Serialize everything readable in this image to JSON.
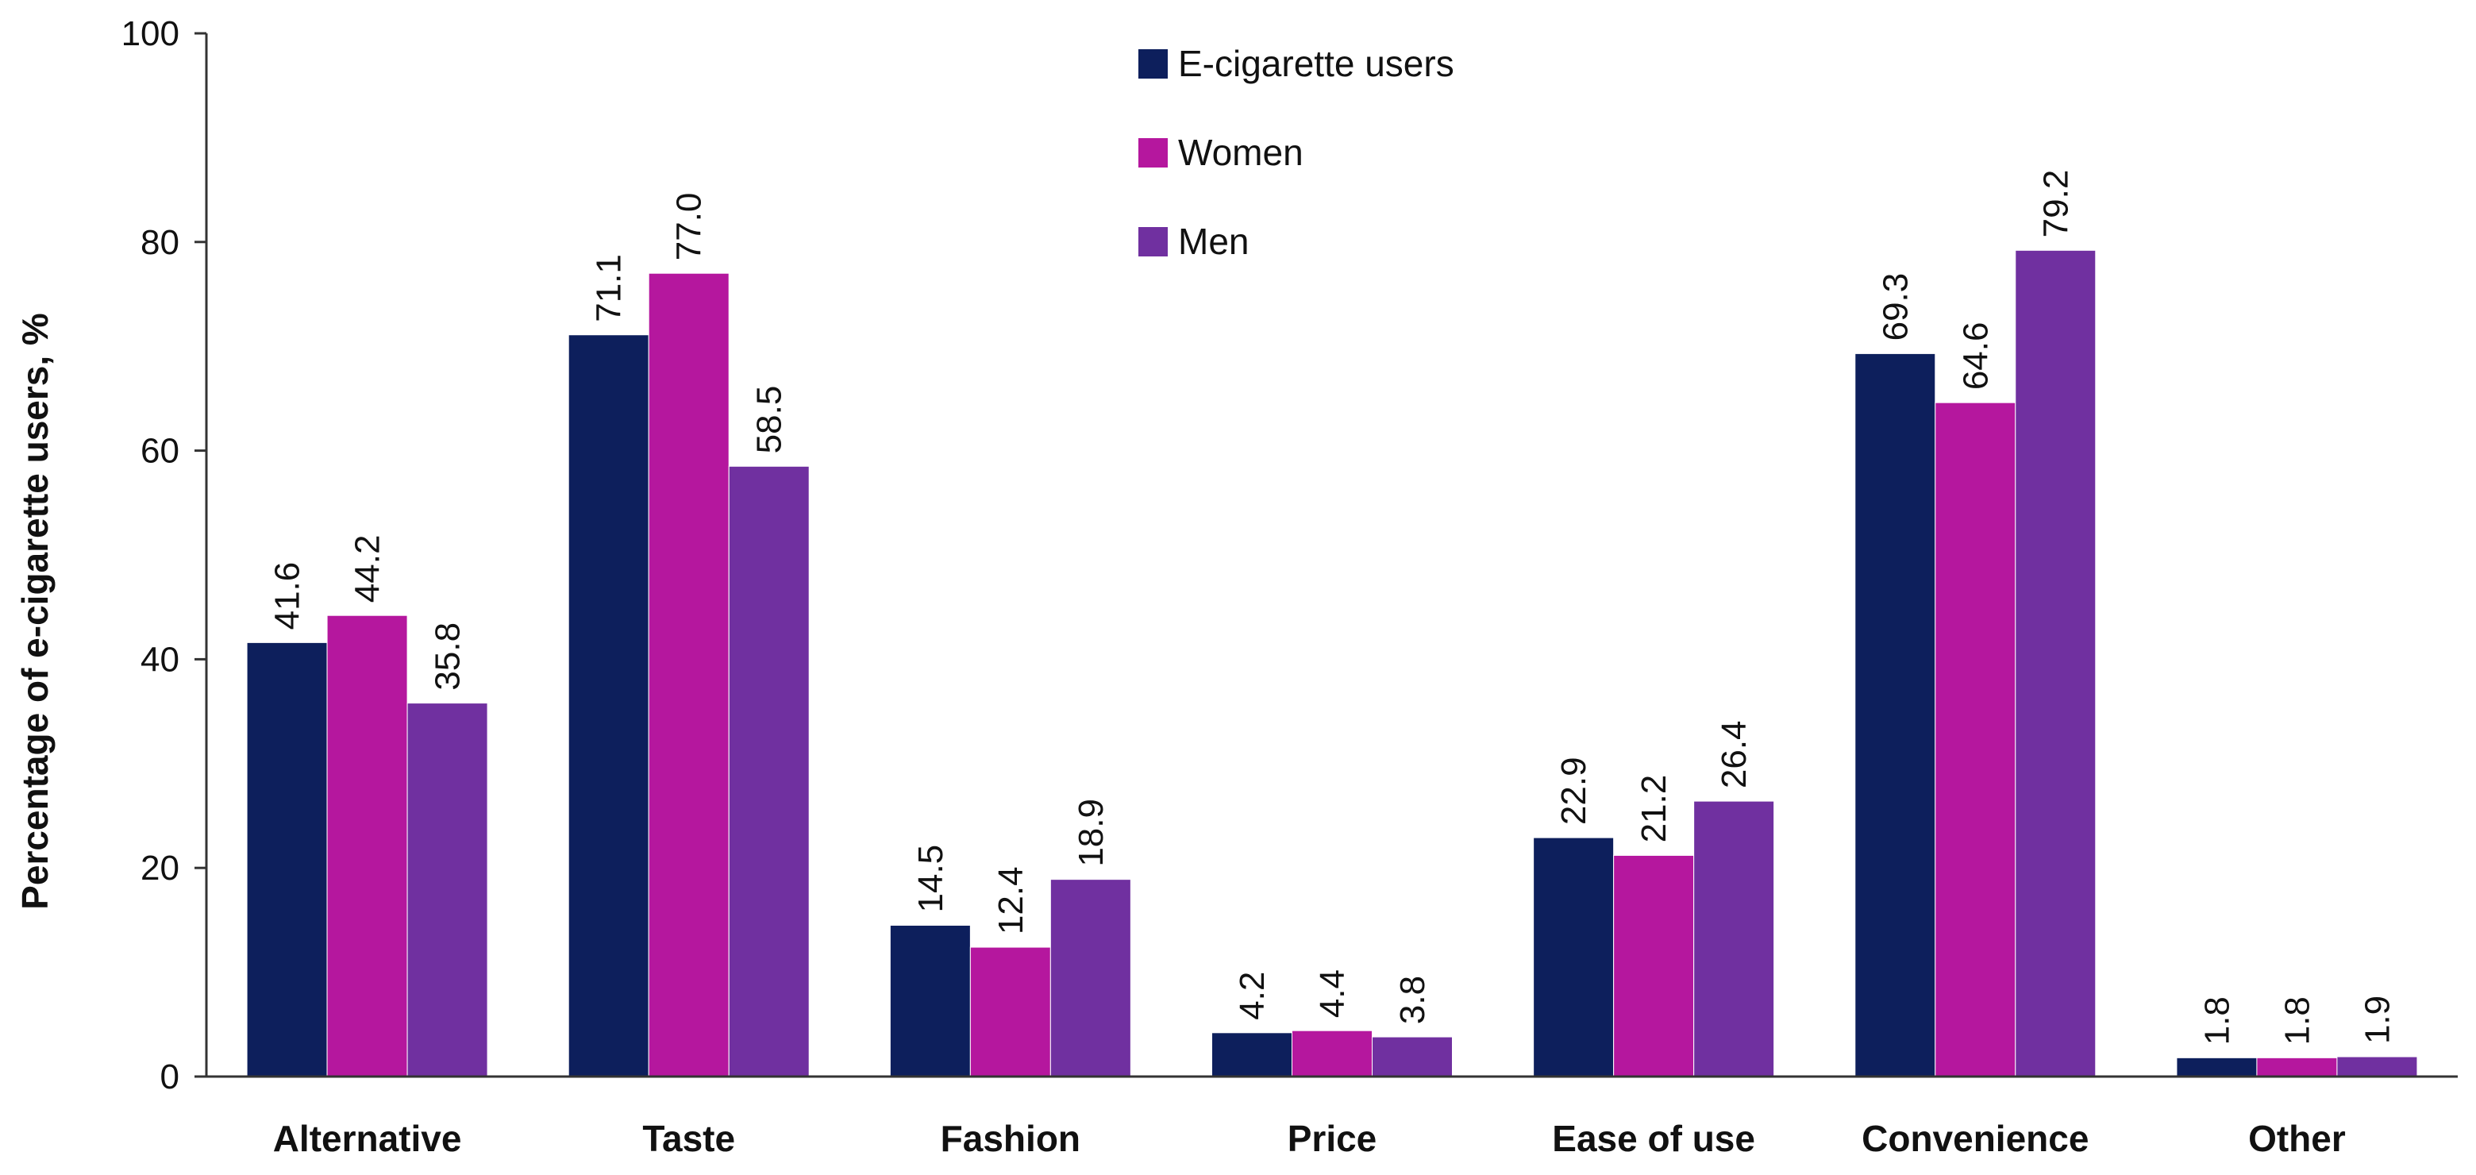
{
  "chart_data": {
    "type": "bar",
    "title": "",
    "xlabel": "",
    "ylabel": "Percentage of e-cigarette users, %",
    "ylim": [
      0,
      100
    ],
    "yticks": [
      0,
      20,
      40,
      60,
      80,
      100
    ],
    "grid": false,
    "legend_position": "top-center",
    "categories": [
      "Alternative",
      "Taste",
      "Fashion",
      "Price",
      "Ease of use",
      "Convenience",
      "Other"
    ],
    "series": [
      {
        "name": "E-cigarette users",
        "color": "#0d1f5c",
        "values": [
          41.6,
          71.1,
          14.5,
          4.2,
          22.9,
          69.3,
          1.8
        ],
        "labels": [
          "41.6",
          "71.1",
          "14.5",
          "4.2",
          "22.9",
          "69.3",
          "1.8"
        ]
      },
      {
        "name": "Women",
        "color": "#b5179e",
        "values": [
          44.2,
          77.0,
          12.4,
          4.4,
          21.2,
          64.6,
          1.8
        ],
        "labels": [
          "44.2",
          "77.0",
          "12.4",
          "4.4",
          "21.2",
          "64.6",
          "1.8"
        ]
      },
      {
        "name": "Men",
        "color": "#7030a0",
        "values": [
          35.8,
          58.5,
          18.9,
          3.8,
          26.4,
          79.2,
          1.9
        ],
        "labels": [
          "35.8",
          "58.5",
          "18.9",
          "3.8",
          "26.4",
          "79.2",
          "1.9"
        ]
      }
    ]
  }
}
